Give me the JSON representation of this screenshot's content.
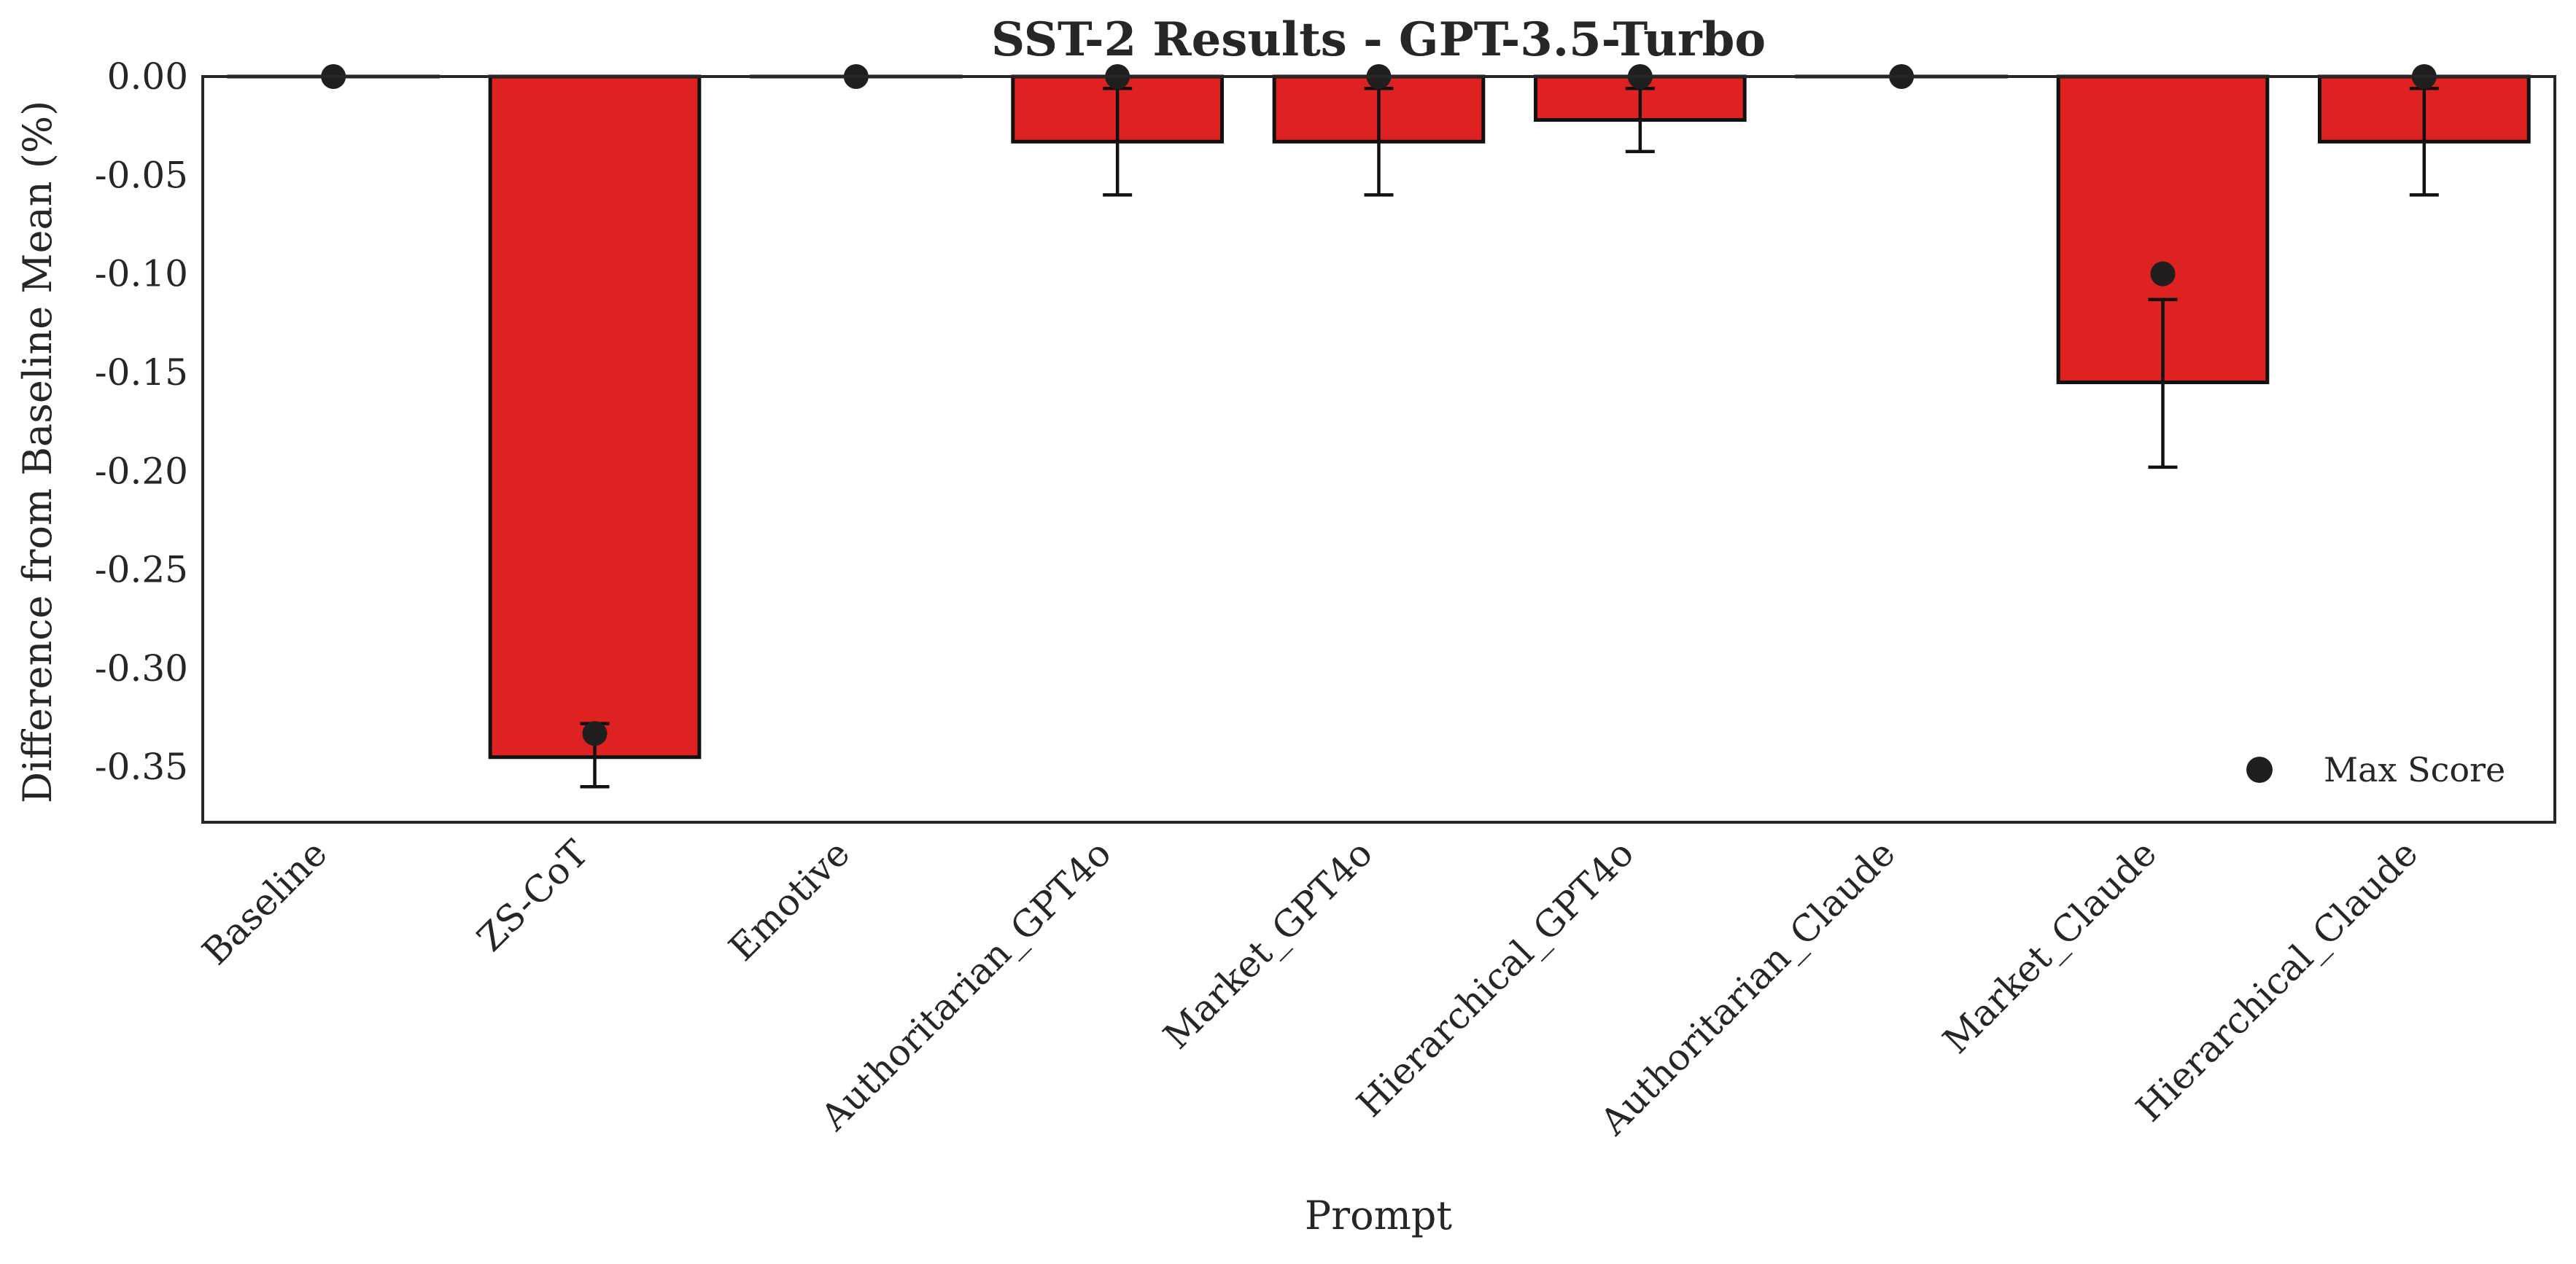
{
  "chart_data": {
    "type": "bar",
    "title": "SST-2 Results - GPT-3.5-Turbo",
    "xlabel": "Prompt",
    "ylabel": "Difference from Baseline Mean (%)",
    "categories": [
      "Baseline",
      "ZS-CoT",
      "Emotive",
      "Authoritarian_GPT4o",
      "Market_GPT4o",
      "Hierarchical_GPT4o",
      "Authoritarian_Claude",
      "Market_Claude",
      "Hierarchical_Claude"
    ],
    "values": [
      0.0,
      -0.345,
      0.0,
      -0.033,
      -0.033,
      -0.022,
      0.0,
      -0.155,
      -0.033
    ],
    "error_bars": [
      null,
      [
        -0.36,
        -0.328
      ],
      null,
      [
        -0.06,
        -0.006
      ],
      [
        -0.06,
        -0.006
      ],
      [
        -0.038,
        -0.006
      ],
      null,
      [
        -0.198,
        -0.113
      ],
      [
        -0.06,
        -0.006
      ]
    ],
    "max_scores": [
      0.0,
      -0.333,
      0.0,
      0.0,
      0.0,
      0.0,
      0.0,
      -0.1,
      0.0
    ],
    "yticks": [
      "0.00",
      "-0.05",
      "-0.10",
      "-0.15",
      "-0.20",
      "-0.25",
      "-0.30",
      "-0.35"
    ],
    "ytick_values": [
      0.0,
      -0.05,
      -0.1,
      -0.15,
      -0.2,
      -0.25,
      -0.3,
      -0.35
    ],
    "ylim": [
      -0.378,
      0.0
    ],
    "grid": false,
    "baseline_line": "dashed",
    "legend": {
      "position": "bottom-right",
      "entries": [
        {
          "label": "Max Score",
          "marker": "circle"
        }
      ]
    },
    "colors": {
      "bar": "#de2121",
      "bar_edge": "#111111",
      "marker": "#1f1f1f",
      "errorbar": "#111111",
      "text": "#262626"
    }
  }
}
